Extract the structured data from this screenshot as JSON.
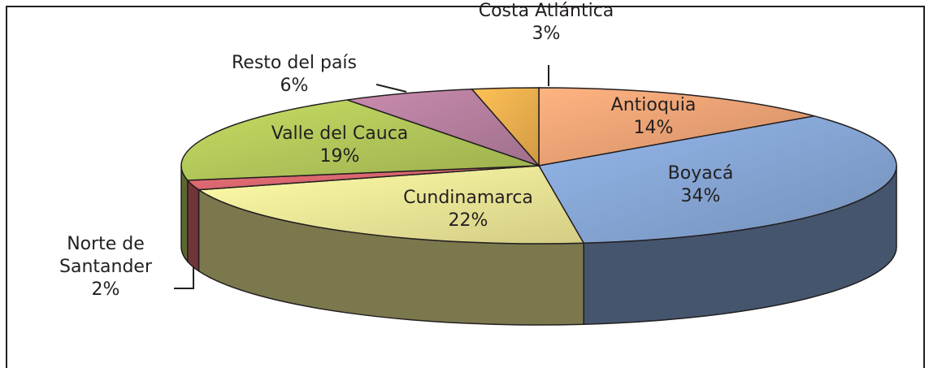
{
  "chart_data": {
    "type": "pie3d",
    "categories": [
      "Antioquia",
      "Boyacá",
      "Cundinamarca",
      "Norte de Santander",
      "Valle del Cauca",
      "Resto del  país",
      "Costa Atlántica"
    ],
    "values": [
      14,
      34,
      22,
      2,
      19,
      6,
      3
    ],
    "value_labels": [
      "14%",
      "34%",
      "22%",
      "2%",
      "19%",
      "6%",
      "3%"
    ],
    "colors": [
      "#f5a677",
      "#89a9da",
      "#f8f09c",
      "#e06a72",
      "#b6cd5c",
      "#bb82a2",
      "#f6b450"
    ]
  }
}
